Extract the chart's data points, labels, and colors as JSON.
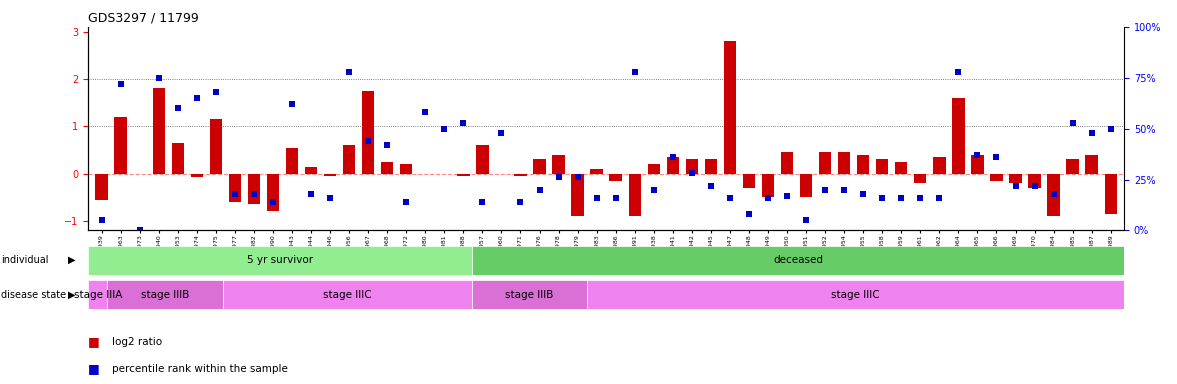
{
  "title": "GDS3297 / 11799",
  "samples": [
    "GSM311939",
    "GSM311963",
    "GSM311973",
    "GSM311940",
    "GSM311953",
    "GSM311974",
    "GSM311975",
    "GSM311977",
    "GSM311982",
    "GSM311990",
    "GSM311943",
    "GSM311944",
    "GSM311946",
    "GSM311956",
    "GSM311967",
    "GSM311968",
    "GSM311972",
    "GSM311980",
    "GSM311981",
    "GSM311988",
    "GSM311957",
    "GSM311960",
    "GSM311971",
    "GSM311976",
    "GSM311978",
    "GSM311979",
    "GSM311983",
    "GSM311986",
    "GSM311991",
    "GSM311938",
    "GSM311941",
    "GSM311942",
    "GSM311945",
    "GSM311947",
    "GSM311948",
    "GSM311949",
    "GSM311950",
    "GSM311951",
    "GSM311952",
    "GSM311954",
    "GSM311955",
    "GSM311958",
    "GSM311959",
    "GSM311961",
    "GSM311962",
    "GSM311964",
    "GSM311965",
    "GSM311966",
    "GSM311969",
    "GSM311970",
    "GSM311984",
    "GSM311985",
    "GSM311987",
    "GSM311989"
  ],
  "log2_ratio": [
    -0.55,
    1.2,
    0.0,
    1.8,
    0.65,
    -0.08,
    1.15,
    -0.6,
    -0.65,
    -0.8,
    0.55,
    0.15,
    -0.05,
    0.6,
    1.75,
    0.25,
    0.2,
    0.0,
    0.0,
    -0.05,
    0.6,
    0.0,
    -0.05,
    0.3,
    0.4,
    -0.9,
    0.1,
    -0.15,
    -0.9,
    0.2,
    0.35,
    0.3,
    0.3,
    2.8,
    -0.3,
    -0.5,
    0.45,
    -0.5,
    0.45,
    0.45,
    0.4,
    0.3,
    0.25,
    -0.2,
    0.35,
    1.6,
    0.4,
    -0.15,
    -0.2,
    -0.3,
    -0.9,
    0.3,
    0.4,
    -0.85
  ],
  "percentile_pct": [
    5,
    72,
    0,
    75,
    60,
    65,
    68,
    18,
    18,
    14,
    62,
    18,
    16,
    78,
    44,
    42,
    14,
    58,
    50,
    53,
    14,
    48,
    14,
    20,
    26,
    26,
    16,
    16,
    78,
    20,
    36,
    28,
    22,
    16,
    8,
    16,
    17,
    5,
    20,
    20,
    18,
    16,
    16,
    16,
    16,
    78,
    37,
    36,
    22,
    22,
    18,
    53,
    48,
    50
  ],
  "individual_groups": [
    {
      "label": "5 yr survivor",
      "start": 0,
      "end": 20,
      "color": "#90EE90"
    },
    {
      "label": "deceased",
      "start": 20,
      "end": 54,
      "color": "#66CC66"
    }
  ],
  "disease_groups": [
    {
      "label": "stage IIIA",
      "start": 0,
      "end": 1,
      "color": "#EE82EE"
    },
    {
      "label": "stage IIIB",
      "start": 1,
      "end": 7,
      "color": "#DA70D6"
    },
    {
      "label": "stage IIIC",
      "start": 7,
      "end": 20,
      "color": "#EE82EE"
    },
    {
      "label": "stage IIIB",
      "start": 20,
      "end": 26,
      "color": "#DA70D6"
    },
    {
      "label": "stage IIIC",
      "start": 26,
      "end": 54,
      "color": "#EE82EE"
    }
  ],
  "bar_color": "#CC0000",
  "dot_color": "#0000CC",
  "ylim_left": [
    -1.2,
    3.1
  ],
  "ylim_right": [
    0,
    100
  ],
  "yticks_left": [
    -1,
    0,
    1,
    2,
    3
  ],
  "yticks_right": [
    0,
    25,
    50,
    75,
    100
  ],
  "background_color": "#ffffff",
  "zero_line_color": "#FF8888",
  "hline_color": "#555555"
}
